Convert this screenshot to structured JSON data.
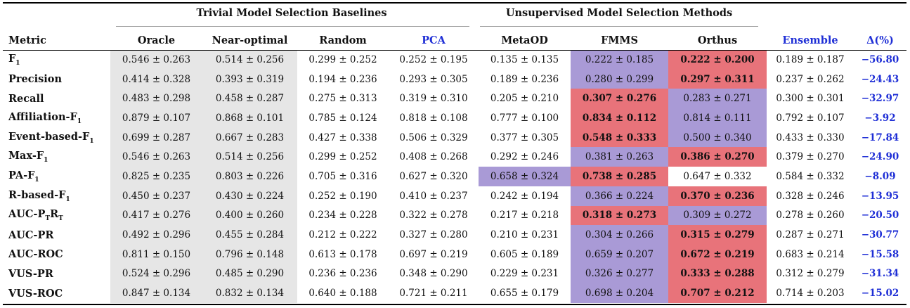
{
  "groups": {
    "baselines": "Trivial Model Selection Baselines",
    "methods": "Unsupervised Model Selection Methods"
  },
  "columns": {
    "metric": "Metric",
    "oracle": "Oracle",
    "near_optimal": "Near-optimal",
    "random": "Random",
    "pca": "PCA",
    "metaod": "MetaOD",
    "fmms": "FMMS",
    "orthus": "Orthus",
    "ensemble": "Ensemble",
    "delta": "Δ(%)"
  },
  "colors": {
    "best": "#e8737a",
    "second": "#a99ad6",
    "baseline_bg": "#e6e6e6",
    "highlight_text": "#1f2fd6"
  },
  "rows": [
    {
      "metric": "F",
      "metric_sub": "1",
      "oracle": "0.546 ± 0.263",
      "near_optimal": "0.514 ± 0.256",
      "random": "0.299 ± 0.252",
      "pca": "0.252 ± 0.195",
      "metaod": "0.135 ± 0.135",
      "fmms": "0.222 ± 0.185",
      "orthus": "0.222 ± 0.200",
      "ensemble": "0.189 ± 0.187",
      "delta": "−56.80"
    },
    {
      "metric": "Precision",
      "metric_sub": "",
      "oracle": "0.414 ± 0.328",
      "near_optimal": "0.393 ± 0.319",
      "random": "0.194 ± 0.236",
      "pca": "0.293 ± 0.305",
      "metaod": "0.189 ± 0.236",
      "fmms": "0.280 ± 0.299",
      "orthus": "0.297 ± 0.311",
      "ensemble": "0.237 ± 0.262",
      "delta": "−24.43"
    },
    {
      "metric": "Recall",
      "metric_sub": "",
      "oracle": "0.483 ± 0.298",
      "near_optimal": "0.458 ± 0.287",
      "random": "0.275 ± 0.313",
      "pca": "0.319 ± 0.310",
      "metaod": "0.205 ± 0.210",
      "fmms": "0.307 ± 0.276",
      "orthus": "0.283 ± 0.271",
      "ensemble": "0.300 ± 0.301",
      "delta": "−32.97"
    },
    {
      "metric": "Affiliation-F",
      "metric_sub": "1",
      "oracle": "0.879 ± 0.107",
      "near_optimal": "0.868 ± 0.101",
      "random": "0.785 ± 0.124",
      "pca": "0.818 ± 0.108",
      "metaod": "0.777 ± 0.100",
      "fmms": "0.834 ± 0.112",
      "orthus": "0.814 ± 0.111",
      "ensemble": "0.792 ± 0.107",
      "delta": "−3.92"
    },
    {
      "metric": "Event-based-F",
      "metric_sub": "1",
      "oracle": "0.699 ± 0.287",
      "near_optimal": "0.667 ± 0.283",
      "random": "0.427 ± 0.338",
      "pca": "0.506 ± 0.329",
      "metaod": "0.377 ± 0.305",
      "fmms": "0.548 ± 0.333",
      "orthus": "0.500 ± 0.340",
      "ensemble": "0.433 ± 0.330",
      "delta": "−17.84"
    },
    {
      "metric": "Max-F",
      "metric_sub": "1",
      "oracle": "0.546 ± 0.263",
      "near_optimal": "0.514 ± 0.256",
      "random": "0.299 ± 0.252",
      "pca": "0.408 ± 0.268",
      "metaod": "0.292 ± 0.246",
      "fmms": "0.381 ± 0.263",
      "orthus": "0.386 ± 0.270",
      "ensemble": "0.379 ± 0.270",
      "delta": "−24.90"
    },
    {
      "metric": "PA-F",
      "metric_sub": "1",
      "oracle": "0.825 ± 0.235",
      "near_optimal": "0.803 ± 0.226",
      "random": "0.705 ± 0.316",
      "pca": "0.627 ± 0.320",
      "metaod": "0.658 ± 0.324",
      "fmms": "0.738 ± 0.285",
      "orthus": "0.647 ± 0.332",
      "ensemble": "0.584 ± 0.332",
      "delta": "−8.09"
    },
    {
      "metric": "R-based-F",
      "metric_sub": "1",
      "oracle": "0.450 ± 0.237",
      "near_optimal": "0.430 ± 0.224",
      "random": "0.252 ± 0.190",
      "pca": "0.410 ± 0.237",
      "metaod": "0.242 ± 0.194",
      "fmms": "0.366 ± 0.224",
      "orthus": "0.370 ± 0.236",
      "ensemble": "0.328 ± 0.246",
      "delta": "−13.95"
    },
    {
      "metric": "AUC-P",
      "metric_sub": "T",
      "metric_b": "R",
      "metric_sub2": "T",
      "oracle": "0.417 ± 0.276",
      "near_optimal": "0.400 ± 0.260",
      "random": "0.234 ± 0.228",
      "pca": "0.322 ± 0.278",
      "metaod": "0.217 ± 0.218",
      "fmms": "0.318 ± 0.273",
      "orthus": "0.309 ± 0.272",
      "ensemble": "0.278 ± 0.260",
      "delta": "−20.50"
    },
    {
      "metric": "AUC-PR",
      "metric_sub": "",
      "oracle": "0.492 ± 0.296",
      "near_optimal": "0.455 ± 0.284",
      "random": "0.212 ± 0.222",
      "pca": "0.327 ± 0.280",
      "metaod": "0.210 ± 0.231",
      "fmms": "0.304 ± 0.266",
      "orthus": "0.315 ± 0.279",
      "ensemble": "0.287 ± 0.271",
      "delta": "−30.77"
    },
    {
      "metric": "AUC-ROC",
      "metric_sub": "",
      "oracle": "0.811 ± 0.150",
      "near_optimal": "0.796 ± 0.148",
      "random": "0.613 ± 0.178",
      "pca": "0.697 ± 0.219",
      "metaod": "0.605 ± 0.189",
      "fmms": "0.659 ± 0.207",
      "orthus": "0.672 ± 0.219",
      "ensemble": "0.683 ± 0.214",
      "delta": "−15.58"
    },
    {
      "metric": "VUS-PR",
      "metric_sub": "",
      "oracle": "0.524 ± 0.296",
      "near_optimal": "0.485 ± 0.290",
      "random": "0.236 ± 0.236",
      "pca": "0.348 ± 0.290",
      "metaod": "0.229 ± 0.231",
      "fmms": "0.326 ± 0.277",
      "orthus": "0.333 ± 0.288",
      "ensemble": "0.312 ± 0.279",
      "delta": "−31.34"
    },
    {
      "metric": "VUS-ROC",
      "metric_sub": "",
      "oracle": "0.847 ± 0.134",
      "near_optimal": "0.832 ± 0.134",
      "random": "0.640 ± 0.188",
      "pca": "0.721 ± 0.211",
      "metaod": "0.655 ± 0.179",
      "fmms": "0.698 ± 0.204",
      "orthus": "0.707 ± 0.212",
      "ensemble": "0.714 ± 0.203",
      "delta": "−15.02"
    }
  ],
  "highlights": [
    {
      "fmms": "second",
      "orthus": "best"
    },
    {
      "fmms": "second",
      "orthus": "best"
    },
    {
      "fmms": "best",
      "orthus": "second"
    },
    {
      "fmms": "best",
      "orthus": "second"
    },
    {
      "fmms": "best",
      "orthus": "second"
    },
    {
      "fmms": "second",
      "orthus": "best"
    },
    {
      "metaod": "second",
      "fmms": "best"
    },
    {
      "fmms": "second",
      "orthus": "best"
    },
    {
      "fmms": "best",
      "orthus": "second"
    },
    {
      "fmms": "second",
      "orthus": "best"
    },
    {
      "fmms": "second",
      "orthus": "best"
    },
    {
      "fmms": "second",
      "orthus": "best"
    },
    {
      "fmms": "second",
      "orthus": "best"
    }
  ]
}
